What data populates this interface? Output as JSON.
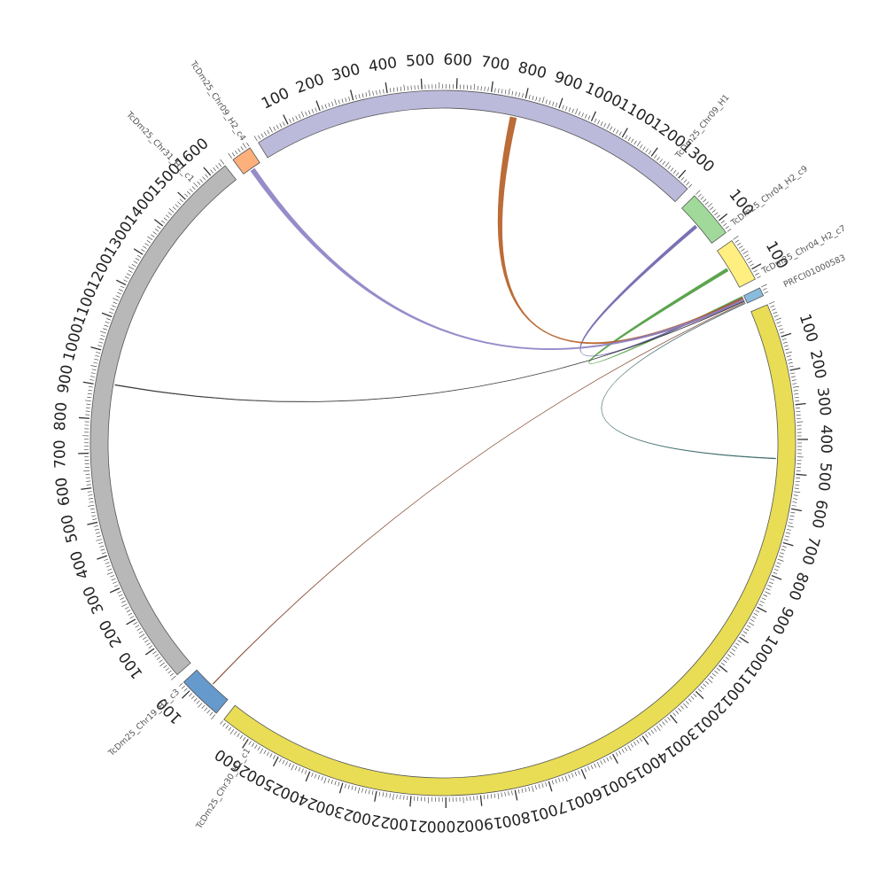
{
  "chart_data": {
    "type": "circos",
    "chromosomes": [
      {
        "id": "TcDm25_Chr19_H2_c3",
        "label": "TcDm25_Chr19_H2_c3",
        "length": 130,
        "color": "#6699cc",
        "ticks": [
          "100"
        ]
      },
      {
        "id": "TcDm25_Chr31_H1_c1",
        "label": "TcDm25_Chr31_H1_c1",
        "length": 1650,
        "color": "#b8b8b8",
        "ticks": [
          "100",
          "200",
          "300",
          "400",
          "500",
          "600",
          "700",
          "800",
          "900",
          "1000",
          "1100",
          "1200",
          "1300",
          "1400",
          "1500",
          "1600"
        ]
      },
      {
        "id": "TcDm25_Chr09_H2_c4",
        "label": "TcDm25_Chr09_H2_c4",
        "length": 60,
        "color": "#fdb07b",
        "ticks": []
      },
      {
        "id": "TcDm25_Chr09_H1",
        "label": "TcDm25_Chr09_H1",
        "length": 1340,
        "color": "#bcbadb",
        "ticks": [
          "100",
          "200",
          "300",
          "400",
          "500",
          "600",
          "700",
          "800",
          "900",
          "1000",
          "1100",
          "1200",
          "1300"
        ]
      },
      {
        "id": "TcDm25_Chr04_H2_c9",
        "label": "TcDm25_Chr04_H2_c9",
        "length": 140,
        "color": "#a1d99b",
        "ticks": [
          "100"
        ]
      },
      {
        "id": "TcDm25_Chr04_H2_c7",
        "label": "TcDm25_Chr04_H2_c7",
        "length": 130,
        "color": "#ffef80",
        "ticks": [
          "100"
        ]
      },
      {
        "id": "PRFCI01000583",
        "label": "PRFCI01000583",
        "length": 25,
        "color": "#88bbdd",
        "ticks": []
      },
      {
        "id": "TcDm25_Chr30_H2_c1",
        "label": "TcDm25_Chr30_H2_c1",
        "length": 2690,
        "color": "#e8dd55",
        "ticks": [
          "100",
          "200",
          "300",
          "400",
          "500",
          "600",
          "700",
          "800",
          "900",
          "1000",
          "1100",
          "1200",
          "1300",
          "1400",
          "1500",
          "1600",
          "1700",
          "1800",
          "1900",
          "2000",
          "2100",
          "2200",
          "2300",
          "2400",
          "2500",
          "2600"
        ]
      }
    ],
    "links": [
      {
        "from": "PRFCI01000583",
        "to": "TcDm25_Chr04_H2_c7",
        "color": "#4a9a3c",
        "width": 10
      },
      {
        "from": "PRFCI01000583",
        "to": "TcDm25_Chr04_H2_c9",
        "color": "#6a62ac",
        "width": 10
      },
      {
        "from": "PRFCI01000583",
        "to": "TcDm25_Chr09_H1",
        "color": "#b45c22",
        "width": 20
      },
      {
        "from": "PRFCI01000583",
        "to": "TcDm25_Chr09_H2_c4",
        "color": "#8c7fc4",
        "width": 15
      },
      {
        "from": "PRFCI01000583",
        "to": "TcDm25_Chr31_H1_c1",
        "color": "#222222",
        "width": 2
      },
      {
        "from": "PRFCI01000583",
        "to": "TcDm25_Chr19_H2_c3",
        "color": "#7a3a22",
        "width": 2
      },
      {
        "from": "PRFCI01000583",
        "to": "TcDm25_Chr30_H2_c1",
        "color": "#2a5a5a",
        "width": 2
      }
    ]
  }
}
